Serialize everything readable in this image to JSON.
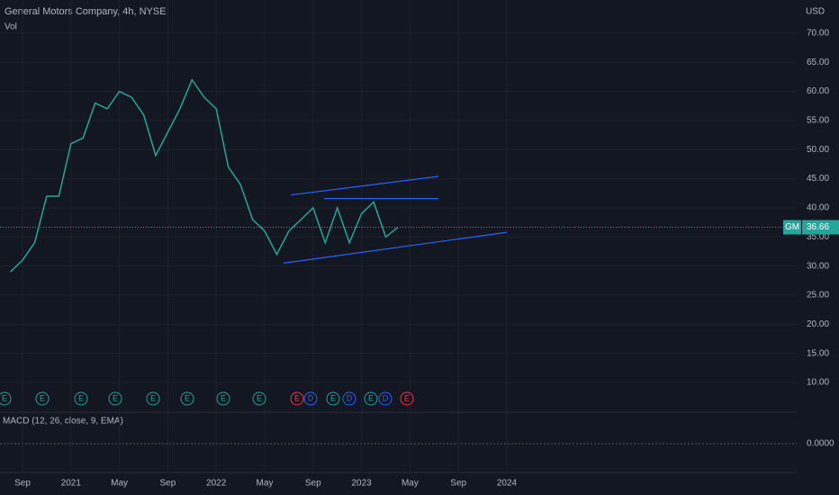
{
  "chart_data": {
    "type": "line",
    "title": "General Motors Company, 4h, NYSE",
    "volume_label": "Vol",
    "currency": "USD",
    "symbol": "GM",
    "last_price": 36.66,
    "last_price_label": "36.66",
    "macd_label": "MACD (12, 26, close, 9, EMA)",
    "macd_tick": "0.0000",
    "categories": [
      null,
      "Sep",
      null,
      null,
      null,
      "2021",
      null,
      null,
      null,
      "May",
      null,
      null,
      null,
      "Sep",
      null,
      null,
      null,
      "2022",
      null,
      null,
      null,
      "May",
      null,
      null,
      null,
      "Sep",
      null,
      null,
      null,
      "2023",
      null,
      null,
      null,
      "May",
      null,
      null,
      null,
      "Sep",
      null,
      null,
      null,
      "2024"
    ],
    "series": [
      {
        "name": "GM",
        "color": "#26a69a",
        "values": [
          29,
          31,
          34,
          42,
          42,
          51,
          52,
          58,
          57,
          60,
          59,
          56,
          49,
          53,
          57,
          62,
          59,
          57,
          47,
          44,
          38,
          36,
          32,
          36,
          38,
          40,
          34,
          40,
          34,
          39,
          41,
          35,
          36.66,
          null,
          null,
          null,
          null,
          null,
          null,
          null,
          null,
          null
        ]
      }
    ],
    "ylim": [
      4.9,
      75.7
    ],
    "yticks": [
      {
        "value": 10,
        "label": "10.00"
      },
      {
        "value": 15,
        "label": "15.00"
      },
      {
        "value": 20,
        "label": "20.00"
      },
      {
        "value": 25,
        "label": "25.00"
      },
      {
        "value": 30,
        "label": "30.00"
      },
      {
        "value": 35,
        "label": "35.00"
      },
      {
        "value": 40,
        "label": "40.00"
      },
      {
        "value": 45,
        "label": "45.00"
      },
      {
        "value": 50,
        "label": "50.00"
      },
      {
        "value": 55,
        "label": "55.00"
      },
      {
        "value": 60,
        "label": "60.00"
      },
      {
        "value": 65,
        "label": "65.00"
      },
      {
        "value": 70,
        "label": "70.00"
      }
    ],
    "grid": true,
    "events": [
      "E",
      "E",
      "E",
      "E",
      "E",
      "E",
      "E",
      "E",
      "E",
      "D",
      "E",
      "D",
      "E",
      "D",
      "E"
    ],
    "trendlines": [
      [
        30.5,
        35.8
      ],
      [
        42.2,
        45.4
      ],
      [
        41.6,
        41.6
      ]
    ]
  }
}
